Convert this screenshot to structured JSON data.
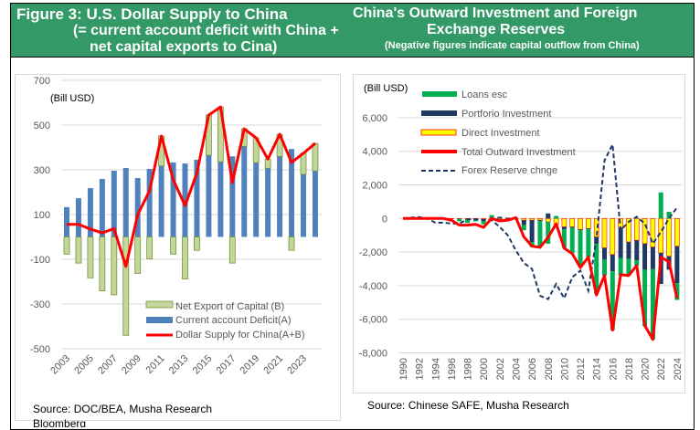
{
  "left_panel": {
    "title_line1": "Figure 3: U.S. Dollar Supply to China",
    "title_line2": "(= current account deficit with China +",
    "title_line3": "net capital exports to Cina)",
    "source": "Source: DOC/BEA, Musha Research",
    "source_line2": "Bloomberg"
  },
  "right_panel": {
    "title_line1": "China's Outward Investment and Foreign",
    "title_line2": "Exchange Reserves",
    "subtitle": "(Negative figures indicate capital outflow from China)",
    "source": "Source: Chinese SAFE, Musha Research"
  },
  "colors": {
    "header_green": "#339966",
    "current_account": "#4f81bd",
    "net_export": "#c4d79b",
    "net_export_border": "#77933c",
    "dollar_supply": "#ff0000",
    "loans": "#00b050",
    "portfolio": "#1f3864",
    "direct": "#ffff00",
    "total": "#ff0000",
    "forex": "#1f3864"
  },
  "chart_data": [
    {
      "type": "bar",
      "unit_label": "(Bill USD)",
      "ylim": [
        -500,
        700
      ],
      "yticks": [
        700,
        500,
        300,
        100,
        -100,
        -300,
        -500
      ],
      "xtick_labels": [
        "2003",
        "2005",
        "2007",
        "2009",
        "2011",
        "2013",
        "2015",
        "2017",
        "2019",
        "2021",
        "2023"
      ],
      "grid": true,
      "legend_position": "bottom-center",
      "categories": [
        "2003",
        "2004",
        "2005",
        "2006",
        "2007",
        "2008",
        "2009",
        "2010",
        "2011",
        "2012",
        "2013",
        "2014",
        "2015",
        "2016",
        "2017",
        "2018",
        "2019",
        "2020",
        "2021",
        "2022",
        "2023",
        "2024"
      ],
      "series": [
        {
          "name": "Net Export of Capital (B)",
          "kind": "bar",
          "values": [
            -77,
            -117,
            -183,
            -241,
            -259,
            -440,
            -163,
            -98,
            134,
            -77,
            -188,
            -60,
            180,
            245,
            -117,
            78,
            111,
            41,
            99,
            -60,
            94,
            123
          ]
        },
        {
          "name": "Current account Deficit(A)",
          "kind": "bar",
          "values": [
            133,
            173,
            218,
            259,
            296,
            308,
            263,
            304,
            317,
            333,
            328,
            345,
            365,
            336,
            360,
            405,
            332,
            307,
            360,
            393,
            280,
            295
          ]
        },
        {
          "name": "Dollar Supply for China(A+B)",
          "kind": "line",
          "values": [
            56,
            56,
            35,
            18,
            37,
            -132,
            100,
            206,
            451,
            256,
            140,
            285,
            545,
            581,
            243,
            483,
            443,
            348,
            459,
            333,
            374,
            418
          ]
        }
      ]
    },
    {
      "type": "bar",
      "unit_label": "(Bill USD)",
      "ylim": [
        -8000,
        6000
      ],
      "yticks": [
        6000,
        4000,
        2000,
        0,
        -2000,
        -4000,
        -6000,
        -8000
      ],
      "ytick_labels": [
        "6,000",
        "4,000",
        "2,000",
        "0",
        "-2,000",
        "-4,000",
        "-6,000",
        "-8,000"
      ],
      "xtick_labels": [
        "1990",
        "1992",
        "1994",
        "1996",
        "1998",
        "2000",
        "2002",
        "2004",
        "2006",
        "2008",
        "2010",
        "2012",
        "2014",
        "2016",
        "2018",
        "2020",
        "2022",
        "2024"
      ],
      "grid": true,
      "legend_position": "top-left",
      "categories": [
        "1990",
        "1991",
        "1992",
        "1993",
        "1994",
        "1995",
        "1996",
        "1997",
        "1998",
        "1999",
        "2000",
        "2001",
        "2002",
        "2003",
        "2004",
        "2005",
        "2006",
        "2007",
        "2008",
        "2009",
        "2010",
        "2011",
        "2012",
        "2013",
        "2014",
        "2015",
        "2016",
        "2017",
        "2018",
        "2019",
        "2020",
        "2021",
        "2022",
        "2023",
        "2024"
      ],
      "series": [
        {
          "name": "Loans esc",
          "kind": "stacked-bar",
          "values": [
            0,
            0,
            0,
            0,
            0,
            0,
            0,
            -150,
            -250,
            -150,
            -300,
            200,
            -50,
            -100,
            50,
            -300,
            -300,
            -1500,
            -1300,
            150,
            -1100,
            -1500,
            -2200,
            -1650,
            -3000,
            -950,
            -3500,
            -1050,
            -1000,
            -300,
            -3350,
            -4200,
            1550,
            400,
            -1000
          ]
        },
        {
          "name": "Portforio Investment",
          "kind": "stacked-bar",
          "values": [
            0,
            0,
            0,
            0,
            0,
            0,
            0,
            0,
            0,
            0,
            0,
            0,
            100,
            50,
            0,
            -300,
            -1300,
            -50,
            300,
            0,
            -150,
            -50,
            -50,
            -50,
            -400,
            -700,
            -1000,
            -1800,
            -1000,
            -1200,
            -1550,
            -1300,
            -1850,
            -800,
            -2200
          ]
        },
        {
          "name": "Direct Investment",
          "kind": "stacked-bar",
          "values": [
            0,
            0,
            0,
            0,
            -20,
            -20,
            -20,
            -20,
            -20,
            -20,
            -50,
            -50,
            -50,
            -50,
            -50,
            -100,
            -100,
            -100,
            -200,
            -400,
            -500,
            -500,
            -650,
            -600,
            -1100,
            -1750,
            -2150,
            -550,
            -1400,
            -1300,
            -1500,
            -1700,
            -2050,
            -2250,
            -1650
          ]
        },
        {
          "name": "Total Outward Investment",
          "kind": "line",
          "values": [
            0,
            0,
            0,
            0,
            0,
            0,
            -100,
            -400,
            -400,
            -350,
            -530,
            0,
            -150,
            -100,
            50,
            -1100,
            -1650,
            -1720,
            -1130,
            -320,
            -1770,
            -2100,
            -2920,
            -2300,
            -4560,
            -3400,
            -6650,
            -3340,
            -3400,
            -2800,
            -6380,
            -7200,
            -2300,
            -2580,
            -4760
          ]
        },
        {
          "name": "Forex Reserve chnge",
          "kind": "dashed-line",
          "values": [
            0,
            50,
            80,
            0,
            -250,
            -250,
            -300,
            -300,
            -50,
            -50,
            -100,
            -100,
            -500,
            -1000,
            -1900,
            -2650,
            -3000,
            -4600,
            -4800,
            -3900,
            -4750,
            -3500,
            -3100,
            -4300,
            -1170,
            3450,
            4400,
            -700,
            -200,
            100,
            -300,
            -1500,
            -800,
            0,
            650
          ]
        }
      ]
    }
  ]
}
